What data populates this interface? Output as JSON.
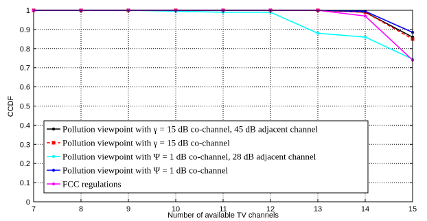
{
  "chart_data": {
    "type": "line",
    "xlabel": "Number of available TV channels",
    "ylabel": "CCDF",
    "xlim": [
      7,
      15
    ],
    "ylim": [
      0,
      1
    ],
    "x_ticks": [
      "7",
      "8",
      "9",
      "10",
      "11",
      "12",
      "13",
      "14",
      "15"
    ],
    "y_ticks": [
      "0",
      "0.1",
      "0.2",
      "0.3",
      "0.4",
      "0.5",
      "0.6",
      "0.7",
      "0.8",
      "0.9",
      "1"
    ],
    "grid": true,
    "legend_position": "lower-left",
    "series": [
      {
        "name": "Pollution viewpoint with γ = 15 dB co-channel, 45 dB adjacent channel",
        "color": "#000000",
        "line_style": "solid",
        "marker": "dot",
        "x": [
          7,
          8,
          9,
          10,
          11,
          12,
          13,
          14,
          15
        ],
        "y": [
          1,
          1,
          1,
          1,
          1,
          1,
          1,
          0.99,
          0.86
        ]
      },
      {
        "name": "Pollution viewpoint with γ = 15 dB co-channel",
        "color": "#ff0000",
        "line_style": "dashed",
        "marker": "square",
        "x": [
          7,
          8,
          9,
          10,
          11,
          12,
          13,
          14,
          15
        ],
        "y": [
          1,
          1,
          1,
          1,
          1,
          1,
          1,
          0.99,
          0.85
        ]
      },
      {
        "name": "Pollution viewpoint with Ψ = 1 dB co-channel, 28 dB adjacent channel",
        "color": "#00ffff",
        "line_style": "solid",
        "marker": "dot",
        "x": [
          7,
          8,
          9,
          10,
          11,
          12,
          13,
          14,
          15
        ],
        "y": [
          1,
          1,
          1,
          0.995,
          0.99,
          0.99,
          0.88,
          0.86,
          0.745
        ]
      },
      {
        "name": "Pollution viewpoint with Ψ = 1 dB co-channel",
        "color": "#0000ff",
        "line_style": "solid",
        "marker": "dot",
        "x": [
          7,
          8,
          9,
          10,
          11,
          12,
          13,
          14,
          15
        ],
        "y": [
          1,
          1,
          1,
          1,
          1,
          1,
          1,
          0.995,
          0.885
        ]
      },
      {
        "name": "FCC regulations",
        "color": "#ff00ff",
        "line_style": "solid",
        "marker": "dot",
        "x": [
          7,
          8,
          9,
          10,
          11,
          12,
          13,
          14,
          15
        ],
        "y": [
          1,
          1,
          1,
          1,
          1,
          1,
          1,
          0.97,
          0.74
        ]
      }
    ]
  }
}
